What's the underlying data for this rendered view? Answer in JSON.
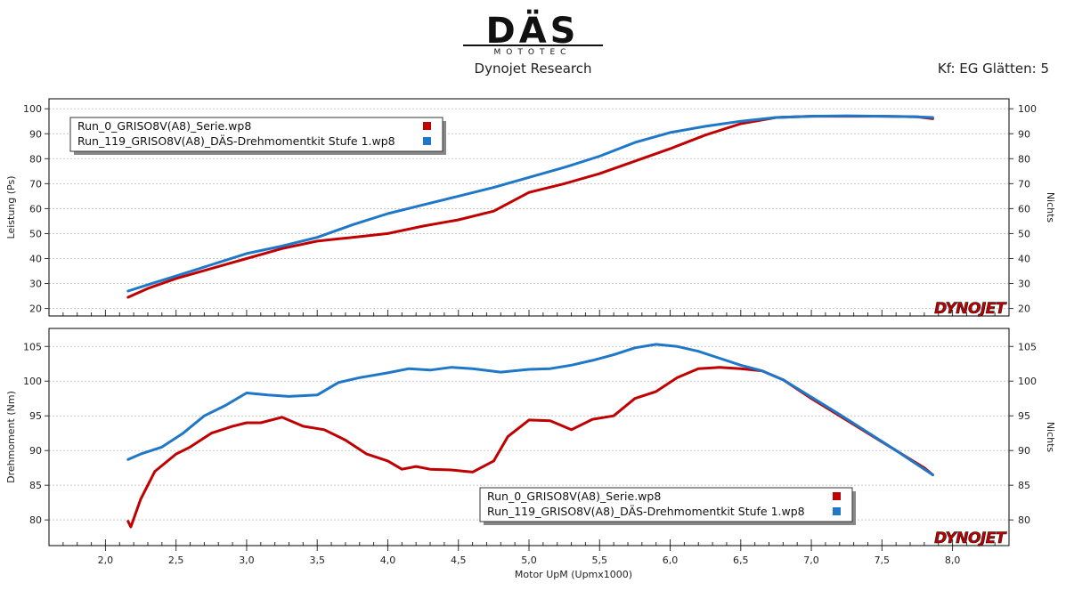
{
  "header": {
    "logo_text": "DÄS",
    "logo_sub": "MOTOTEC",
    "title": "Dynojet Research",
    "smoothing": "Kf: EG Glätten: 5"
  },
  "brand_watermark": "DYNOJET",
  "colors": {
    "series1": "#c00000",
    "series2": "#1f77c8",
    "grid": "#c8c8c8",
    "axis": "#000000"
  },
  "chart_data": [
    {
      "type": "line",
      "ylabel": "Leistung (Ps)",
      "y2label": "Nichts",
      "ylim": [
        17,
        104
      ],
      "yticks": [
        20,
        30,
        40,
        50,
        60,
        70,
        80,
        90,
        100
      ],
      "xlim": [
        1.6,
        8.4
      ],
      "legend_position": "top-left",
      "series": [
        {
          "name": "Run_0_GRISO8V(A8)_Serie.wp8",
          "color": "#c00000",
          "x": [
            2.16,
            2.3,
            2.5,
            2.75,
            3.0,
            3.25,
            3.5,
            3.75,
            4.0,
            4.25,
            4.5,
            4.75,
            5.0,
            5.25,
            5.5,
            5.75,
            6.0,
            6.25,
            6.5,
            6.75,
            7.0,
            7.25,
            7.5,
            7.75,
            7.86
          ],
          "y": [
            24.5,
            28,
            32,
            36,
            40,
            44,
            47,
            48.5,
            50,
            53,
            55.5,
            59,
            66.5,
            70,
            74,
            79,
            84,
            89.5,
            94,
            96.5,
            97,
            97,
            97,
            96.8,
            96
          ]
        },
        {
          "name": "Run_119_GRISO8V(A8)_DÄS-Drehmomentkit Stufe 1.wp8",
          "color": "#1f77c8",
          "x": [
            2.16,
            2.3,
            2.5,
            2.75,
            3.0,
            3.25,
            3.5,
            3.75,
            4.0,
            4.25,
            4.5,
            4.75,
            5.0,
            5.25,
            5.5,
            5.75,
            6.0,
            6.25,
            6.5,
            6.75,
            7.0,
            7.25,
            7.5,
            7.75,
            7.86
          ],
          "y": [
            27,
            29.5,
            33,
            37.5,
            42,
            45,
            48.5,
            53.5,
            58,
            61.5,
            65,
            68.5,
            72.5,
            76.5,
            81,
            86.5,
            90.5,
            93,
            95,
            96.5,
            97,
            97.2,
            97,
            96.8,
            96.5
          ]
        }
      ]
    },
    {
      "type": "line",
      "xlabel": "Motor UpM (Upmx1000)",
      "ylabel": "Drehmoment (Nm)",
      "y2label": "Nichts",
      "ylim": [
        76.3,
        107.6
      ],
      "yticks": [
        80,
        85,
        90,
        95,
        100,
        105
      ],
      "xlim": [
        1.6,
        8.4
      ],
      "xticks": [
        "2,0",
        "2,5",
        "3,0",
        "3,5",
        "4,0",
        "4,5",
        "5,0",
        "5,5",
        "6,0",
        "6,5",
        "7,0",
        "7,5",
        "8,0"
      ],
      "legend_position": "bottom-right",
      "series": [
        {
          "name": "Run_0_GRISO8V(A8)_Serie.wp8",
          "color": "#c00000",
          "x": [
            2.16,
            2.18,
            2.25,
            2.35,
            2.5,
            2.6,
            2.75,
            2.9,
            3.0,
            3.1,
            3.25,
            3.4,
            3.55,
            3.7,
            3.85,
            4.0,
            4.1,
            4.2,
            4.3,
            4.45,
            4.6,
            4.75,
            4.85,
            5.0,
            5.15,
            5.3,
            5.45,
            5.6,
            5.75,
            5.9,
            6.05,
            6.2,
            6.35,
            6.5,
            6.65,
            6.8,
            7.0,
            7.2,
            7.4,
            7.6,
            7.8,
            7.86
          ],
          "y": [
            79.8,
            79,
            83,
            87,
            89.5,
            90.5,
            92.5,
            93.5,
            94,
            94,
            94.8,
            93.5,
            93,
            91.5,
            89.5,
            88.5,
            87.3,
            87.7,
            87.3,
            87.2,
            86.9,
            88.5,
            92,
            94.4,
            94.3,
            93,
            94.5,
            95,
            97.5,
            98.5,
            100.5,
            101.8,
            102,
            101.8,
            101.5,
            100.2,
            97.5,
            95,
            92.5,
            90,
            87.5,
            86.5
          ]
        },
        {
          "name": "Run_119_GRISO8V(A8)_DÄS-Drehmomentkit Stufe 1.wp8",
          "color": "#1f77c8",
          "x": [
            2.16,
            2.25,
            2.4,
            2.55,
            2.7,
            2.85,
            3.0,
            3.15,
            3.3,
            3.5,
            3.65,
            3.8,
            4.0,
            4.15,
            4.3,
            4.45,
            4.6,
            4.8,
            5.0,
            5.15,
            5.3,
            5.45,
            5.6,
            5.75,
            5.9,
            6.05,
            6.2,
            6.35,
            6.5,
            6.65,
            6.8,
            7.0,
            7.2,
            7.4,
            7.6,
            7.8,
            7.86
          ],
          "y": [
            88.7,
            89.5,
            90.5,
            92.5,
            95,
            96.5,
            98.3,
            98,
            97.8,
            98,
            99.8,
            100.5,
            101.2,
            101.8,
            101.6,
            102,
            101.8,
            101.3,
            101.7,
            101.8,
            102.3,
            103,
            103.8,
            104.8,
            105.3,
            105,
            104.3,
            103.3,
            102.3,
            101.5,
            100.2,
            97.7,
            95.2,
            92.6,
            90,
            87.3,
            86.5
          ]
        }
      ]
    }
  ]
}
